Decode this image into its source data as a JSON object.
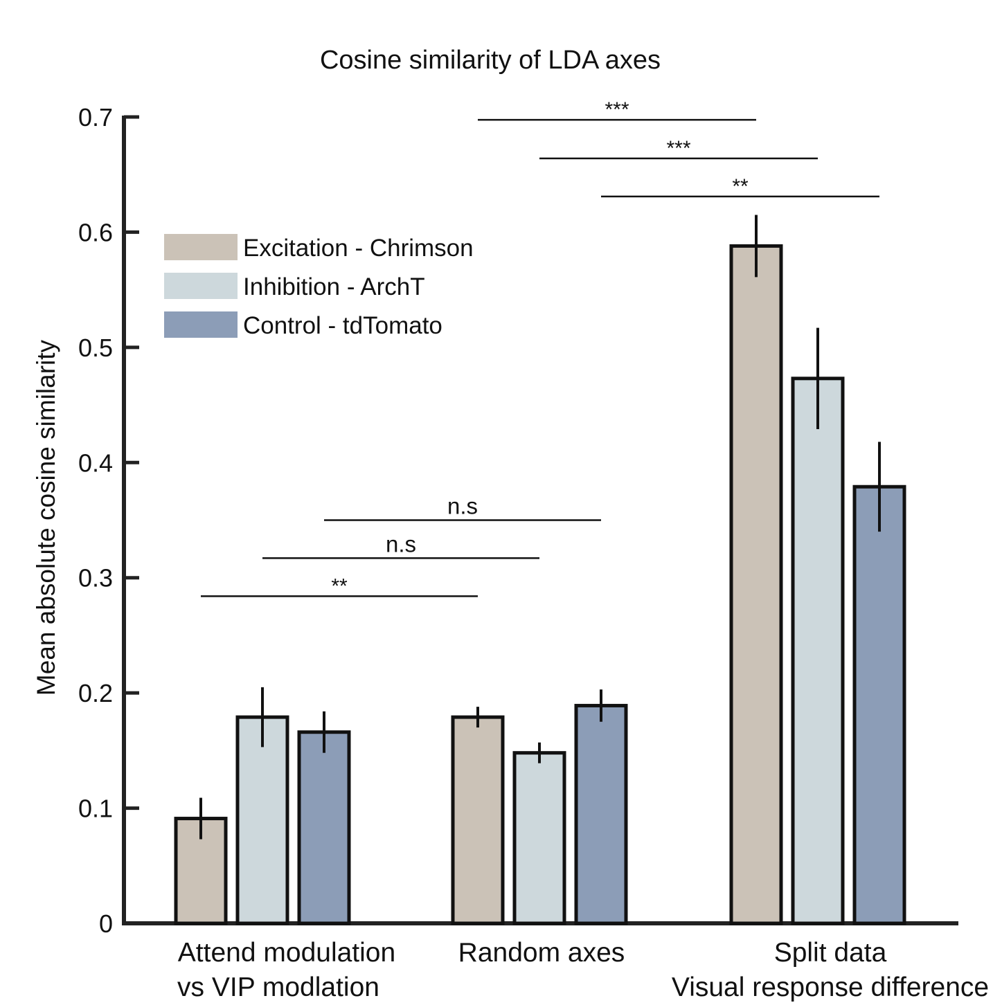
{
  "chart_data": {
    "type": "bar",
    "title": "Cosine similarity of LDA axes",
    "ylabel": "Mean absolute cosine similarity",
    "xlabel": "",
    "ylim": [
      0,
      0.7
    ],
    "yticks": [
      0,
      0.1,
      0.2,
      0.3,
      0.4,
      0.5,
      0.6,
      0.7
    ],
    "ytick_labels": [
      "0",
      "0.1",
      "0.2",
      "0.3",
      "0.4",
      "0.5",
      "0.6",
      "0.7"
    ],
    "grid": false,
    "legend_position": "top-left",
    "categories": [
      [
        "Attend modulation",
        "vs VIP modlation"
      ],
      [
        "Random axes"
      ],
      [
        "Split data",
        "Visual response difference"
      ]
    ],
    "series": [
      {
        "name": "Excitation - Chrimson",
        "color": "#cbc2b7",
        "values": [
          0.091,
          0.179,
          0.588
        ],
        "errors": [
          0.018,
          0.009,
          0.027
        ]
      },
      {
        "name": "Inhibition - ArchT",
        "color": "#cdd8dc",
        "values": [
          0.179,
          0.148,
          0.473
        ],
        "errors": [
          0.026,
          0.009,
          0.044
        ]
      },
      {
        "name": "Control - tdTomato",
        "color": "#8c9db7",
        "values": [
          0.166,
          0.189,
          0.379
        ],
        "errors": [
          0.018,
          0.014,
          0.039
        ]
      }
    ],
    "significance": [
      {
        "from": [
          0,
          0
        ],
        "to": [
          1,
          0
        ],
        "y": 0.284,
        "label": "**"
      },
      {
        "from": [
          0,
          1
        ],
        "to": [
          1,
          1
        ],
        "y": 0.317,
        "label": "n.s"
      },
      {
        "from": [
          0,
          2
        ],
        "to": [
          1,
          2
        ],
        "y": 0.35,
        "label": "n.s"
      },
      {
        "from": [
          1,
          0
        ],
        "to": [
          2,
          0
        ],
        "y": 0.6975,
        "label": "***"
      },
      {
        "from": [
          1,
          1
        ],
        "to": [
          2,
          1
        ],
        "y": 0.664,
        "label": "***"
      },
      {
        "from": [
          1,
          2
        ],
        "to": [
          2,
          2
        ],
        "y": 0.631,
        "label": "**"
      }
    ]
  }
}
